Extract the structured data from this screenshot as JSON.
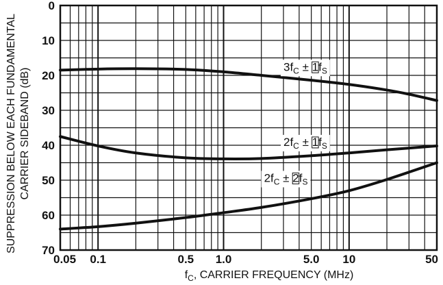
{
  "chart_data": {
    "type": "line",
    "x_scale": "log",
    "y_reversed": true,
    "xlim": [
      0.05,
      50
    ],
    "ylim": [
      0,
      70
    ],
    "grid": true,
    "xlabel": {
      "main": "f",
      "sub": "C",
      "rest": ", CARRIER FREQUENCY (MHz)"
    },
    "ylabel_lines": [
      "SUPPRESSION BELOW EACH FUNDAMENTAL",
      "CARRIER SIDEBAND (dB)"
    ],
    "x_ticks": [
      {
        "value": 0.05,
        "label": "0.05"
      },
      {
        "value": 0.1,
        "label": "0.1"
      },
      {
        "value": 0.5,
        "label": "0.5"
      },
      {
        "value": 1,
        "label": "1.0"
      },
      {
        "value": 5,
        "label": "5.0"
      },
      {
        "value": 10,
        "label": "10"
      },
      {
        "value": 50,
        "label": "50"
      }
    ],
    "y_ticks": [
      {
        "value": 0,
        "label": "0"
      },
      {
        "value": 10,
        "label": "10"
      },
      {
        "value": 20,
        "label": "20"
      },
      {
        "value": 30,
        "label": "30"
      },
      {
        "value": 40,
        "label": "40"
      },
      {
        "value": 50,
        "label": "50"
      },
      {
        "value": 60,
        "label": "60"
      },
      {
        "value": 70,
        "label": "70"
      }
    ],
    "series": [
      {
        "label": {
          "pre": "3f",
          "sub1": "C",
          "mid": " ± ",
          "box": "1",
          "post": "f",
          "sub2": "S"
        },
        "x": [
          0.05,
          0.1,
          0.2,
          0.5,
          1,
          2,
          5,
          10,
          20,
          30,
          50
        ],
        "y": [
          18.5,
          18.2,
          18.1,
          18.3,
          19.0,
          20.0,
          21.4,
          22.6,
          24.2,
          25.4,
          27.2
        ]
      },
      {
        "label": {
          "pre": "2f",
          "sub1": "C",
          "mid": " ± ",
          "box": "1",
          "post": "f",
          "sub2": "S"
        },
        "x": [
          0.05,
          0.1,
          0.2,
          0.5,
          1,
          2,
          5,
          10,
          20,
          50
        ],
        "y": [
          37.5,
          40.2,
          42.2,
          43.6,
          43.9,
          43.8,
          43.0,
          42.2,
          41.3,
          40.2
        ]
      },
      {
        "label": {
          "pre": "2f",
          "sub1": "C",
          "mid": " ± ",
          "box": "2",
          "post": "f",
          "sub2": "S"
        },
        "x": [
          0.05,
          0.1,
          0.2,
          0.5,
          1,
          2,
          5,
          10,
          20,
          50
        ],
        "y": [
          64.0,
          63.3,
          62.3,
          60.7,
          59.3,
          57.8,
          55.3,
          53.0,
          49.8,
          45.0
        ]
      }
    ]
  }
}
